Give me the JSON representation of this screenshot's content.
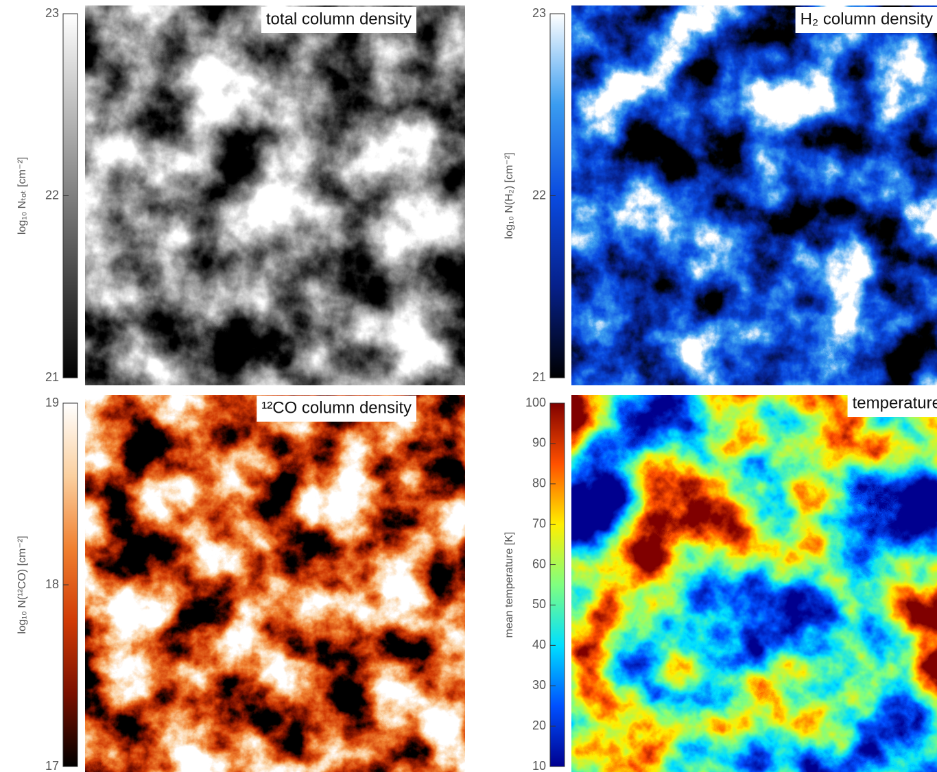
{
  "chart_data": [
    {
      "type": "heatmap",
      "title": "total column density",
      "colorbar_label": "log₁₀ Nₜₒₜ [cm⁻²]",
      "ylim": [
        21,
        23
      ],
      "yticks": [
        21,
        22,
        23
      ],
      "colors": [
        "#000000",
        "#ffffff"
      ]
    },
    {
      "type": "heatmap",
      "title": "H₂ column density",
      "colorbar_label": "log₁₀ N(H₂) [cm⁻²]",
      "ylim": [
        21,
        23
      ],
      "yticks": [
        21,
        22,
        23
      ],
      "colors": [
        "#000000",
        "#06208a",
        "#0a4be0",
        "#3a9cf0",
        "#ffffff"
      ]
    },
    {
      "type": "heatmap",
      "title": "¹²CO column density",
      "colorbar_label": "log₁₀ N(¹²CO) [cm⁻²]",
      "ylim": [
        17,
        19
      ],
      "yticks": [
        17,
        18,
        19
      ],
      "colors": [
        "#000000",
        "#7a1000",
        "#d03a05",
        "#f08030",
        "#fbd0a0",
        "#ffffff"
      ]
    },
    {
      "type": "heatmap",
      "title": "temperature",
      "colorbar_label": "mean temperature [K]",
      "ylim": [
        10,
        100
      ],
      "yticks": [
        10,
        20,
        30,
        40,
        50,
        60,
        70,
        80,
        90,
        100
      ],
      "colors": [
        "#00008f",
        "#0050ff",
        "#00dfff",
        "#80ff80",
        "#ffef00",
        "#ff5000",
        "#800000"
      ]
    }
  ]
}
